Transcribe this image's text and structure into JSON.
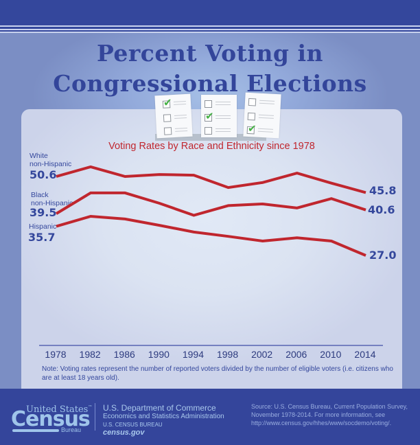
{
  "header": {
    "title_line1": "Percent Voting in",
    "title_line2": "Congressional Elections"
  },
  "icons": {
    "ballots": "ballot-checklist-icons"
  },
  "colors": {
    "brand_dark": "#34479c",
    "line": "#c0262e",
    "label": "#34479c",
    "check": "#46b046"
  },
  "chart_data": {
    "type": "line",
    "title": "Voting Rates by Race and Ethnicity since 1978",
    "xlabel": "",
    "ylabel": "",
    "x": [
      "1978",
      "1982",
      "1986",
      "1990",
      "1994",
      "1998",
      "2002",
      "2006",
      "2010",
      "2014"
    ],
    "ylim": [
      20,
      60
    ],
    "grid": false,
    "series": [
      {
        "name": "White non-Hispanic",
        "label_line1": "White",
        "label_line2": "non-Hispanic",
        "values": [
          50.6,
          53.5,
          50.6,
          51.2,
          51.0,
          47.3,
          48.8,
          51.6,
          48.6,
          45.8
        ],
        "start_label": "50.6",
        "end_label": "45.8"
      },
      {
        "name": "Black non-Hispanic",
        "label_line1": "Black",
        "label_line2": "non-Hispanic",
        "values": [
          39.5,
          45.7,
          45.7,
          42.6,
          39.0,
          41.9,
          42.4,
          41.2,
          44.0,
          40.6
        ],
        "start_label": "39.5",
        "end_label": "40.6"
      },
      {
        "name": "Hispanic",
        "label_line1": "Hispanic",
        "label_line2": "",
        "values": [
          35.7,
          38.7,
          37.9,
          36.0,
          34.0,
          32.7,
          31.3,
          32.3,
          31.3,
          27.0
        ],
        "start_label": "35.7",
        "end_label": "27.0"
      }
    ],
    "note": "Note: Voting rates represent the number of reported voters divided by the number of eligible voters (i.e. citizens who are at least 18 years old)."
  },
  "footer": {
    "logo_top": "United States",
    "logo_tm": "™",
    "logo_main": "Census",
    "logo_sub": "Bureau",
    "dept_line1": "U.S. Department of Commerce",
    "dept_line2": "Economics and Statistics Administration",
    "dept_line3": "U.S. CENSUS BUREAU",
    "dept_line4": "census.gov",
    "source": "Source: U.S. Census Bureau, Current Population Survey, November 1978-2014. For more information, see http://www.census.gov/hhes/www/socdemo/voting/."
  }
}
